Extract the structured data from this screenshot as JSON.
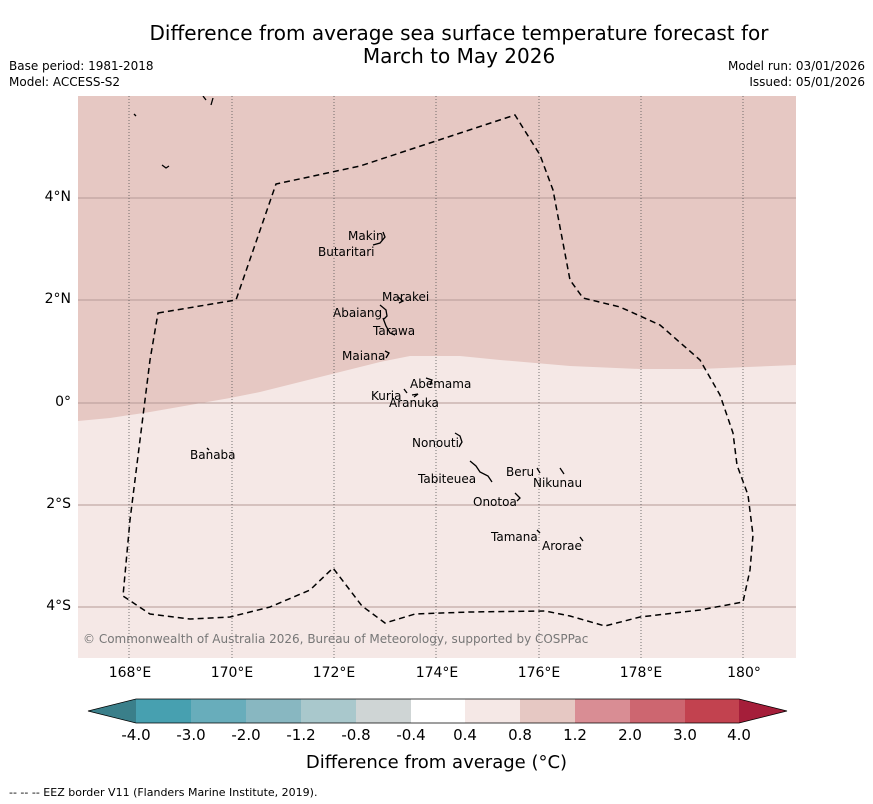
{
  "header": {
    "title_line1": "Difference from average sea surface temperature forecast for",
    "title_line2": "March to May 2026",
    "base_period": "Base period: 1981-2018",
    "model": "Model: ACCESS-S2",
    "model_run": "Model run: 03/01/2026",
    "issued": "Issued: 05/01/2026"
  },
  "map": {
    "latitude_labels": [
      "4°N",
      "2°N",
      "0°",
      "2°S",
      "4°S"
    ],
    "longitude_labels": [
      "168°E",
      "170°E",
      "172°E",
      "174°E",
      "176°E",
      "178°E",
      "180°"
    ],
    "islands": [
      "Makin",
      "Butaritari",
      "Marakei",
      "Abaiang",
      "Tarawa",
      "Maiana",
      "Abemama",
      "Kuria",
      "Aranuka",
      "Nonouti",
      "Banaba",
      "Beru",
      "Nikunau",
      "Tabiteuea",
      "Onotoa",
      "Tamana",
      "Arorae"
    ],
    "copyright": "© Commonwealth of Australia 2026, Bureau of Meteorology, supported by COSPPac",
    "colors": {
      "north_region": "#e6c8c3",
      "south_region": "#f5e8e6",
      "grid": "#b59a97"
    }
  },
  "colorbar": {
    "tick_labels": [
      "-4.0",
      "-3.0",
      "-2.0",
      "-1.2",
      "-0.8",
      "-0.4",
      "0.4",
      "0.8",
      "1.2",
      "2.0",
      "3.0",
      "4.0"
    ],
    "colors": [
      "#3a7f8a",
      "#47a0b0",
      "#68adbb",
      "#88b7c1",
      "#a9c8cc",
      "#cfd5d5",
      "#ffffff",
      "#f5e8e6",
      "#e6c8c3",
      "#d98d94",
      "#cd6670",
      "#c2424f",
      "#a51e3a"
    ],
    "title": "Difference from average (°C)"
  },
  "footnote": "--  --  -- EEZ border V11 (Flanders Marine Institute, 2019)."
}
